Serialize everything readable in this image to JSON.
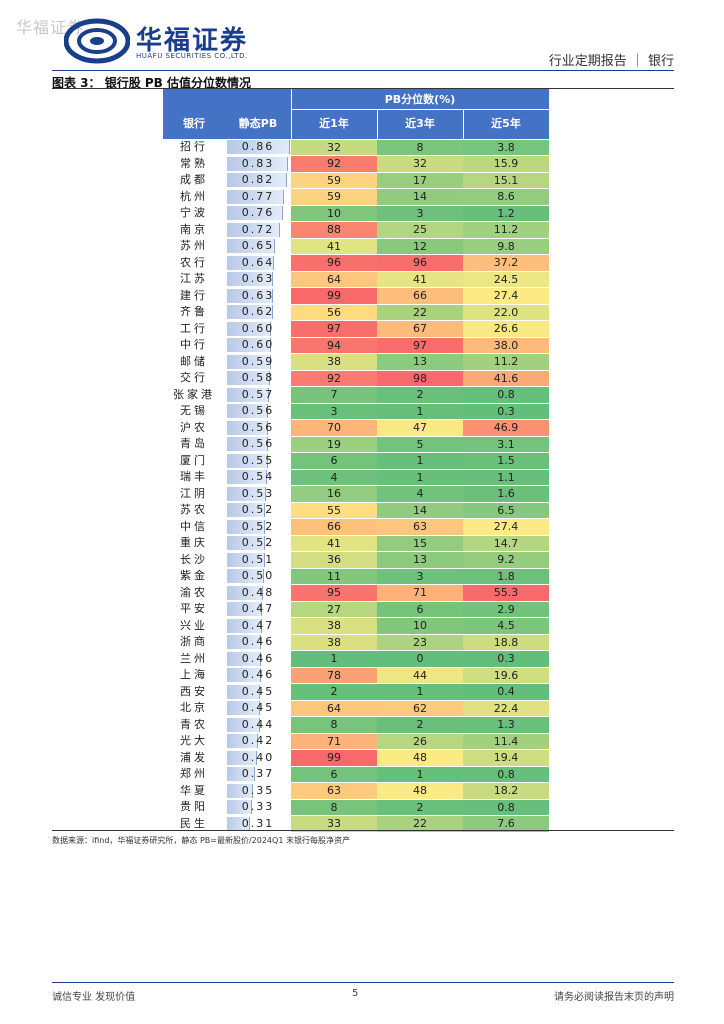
{
  "watermark": "华福证券",
  "logo": {
    "cn": "华福证券",
    "en": "HUAFU SECURITIES CO.,LTD."
  },
  "header": {
    "right": "行业定期报告 ｜ 银行"
  },
  "figure": {
    "title": "图表 3：  银行股 PB 估值分位数情况"
  },
  "table": {
    "group_header": "PB分位数(%)",
    "columns": [
      "银行",
      "静态PB",
      "近1年",
      "近3年",
      "近5年"
    ],
    "pb_max": 0.86,
    "rows": [
      {
        "bank": "招行",
        "pb": "0.86",
        "y1": "32",
        "y3": "8",
        "y5": "3.8"
      },
      {
        "bank": "常熟",
        "pb": "0.83",
        "y1": "92",
        "y3": "32",
        "y5": "15.9"
      },
      {
        "bank": "成都",
        "pb": "0.82",
        "y1": "59",
        "y3": "17",
        "y5": "15.1"
      },
      {
        "bank": "杭州",
        "pb": "0.77",
        "y1": "59",
        "y3": "14",
        "y5": "8.6"
      },
      {
        "bank": "宁波",
        "pb": "0.76",
        "y1": "10",
        "y3": "3",
        "y5": "1.2"
      },
      {
        "bank": "南京",
        "pb": "0.72",
        "y1": "88",
        "y3": "25",
        "y5": "11.2"
      },
      {
        "bank": "苏州",
        "pb": "0.65",
        "y1": "41",
        "y3": "12",
        "y5": "9.8"
      },
      {
        "bank": "农行",
        "pb": "0.64",
        "y1": "96",
        "y3": "96",
        "y5": "37.2"
      },
      {
        "bank": "江苏",
        "pb": "0.63",
        "y1": "64",
        "y3": "41",
        "y5": "24.5"
      },
      {
        "bank": "建行",
        "pb": "0.63",
        "y1": "99",
        "y3": "66",
        "y5": "27.4"
      },
      {
        "bank": "齐鲁",
        "pb": "0.62",
        "y1": "56",
        "y3": "22",
        "y5": "22.0"
      },
      {
        "bank": "工行",
        "pb": "0.60",
        "y1": "97",
        "y3": "67",
        "y5": "26.6"
      },
      {
        "bank": "中行",
        "pb": "0.60",
        "y1": "94",
        "y3": "97",
        "y5": "38.0"
      },
      {
        "bank": "邮储",
        "pb": "0.59",
        "y1": "38",
        "y3": "13",
        "y5": "11.2"
      },
      {
        "bank": "交行",
        "pb": "0.58",
        "y1": "92",
        "y3": "98",
        "y5": "41.6"
      },
      {
        "bank": "张家港",
        "pb": "0.57",
        "y1": "7",
        "y3": "2",
        "y5": "0.8"
      },
      {
        "bank": "无锡",
        "pb": "0.56",
        "y1": "3",
        "y3": "1",
        "y5": "0.3"
      },
      {
        "bank": "沪农",
        "pb": "0.56",
        "y1": "70",
        "y3": "47",
        "y5": "46.9"
      },
      {
        "bank": "青岛",
        "pb": "0.56",
        "y1": "19",
        "y3": "5",
        "y5": "3.1"
      },
      {
        "bank": "厦门",
        "pb": "0.55",
        "y1": "6",
        "y3": "1",
        "y5": "1.5"
      },
      {
        "bank": "瑞丰",
        "pb": "0.54",
        "y1": "4",
        "y3": "1",
        "y5": "1.1"
      },
      {
        "bank": "江阴",
        "pb": "0.53",
        "y1": "16",
        "y3": "4",
        "y5": "1.6"
      },
      {
        "bank": "苏农",
        "pb": "0.52",
        "y1": "55",
        "y3": "14",
        "y5": "6.5"
      },
      {
        "bank": "中信",
        "pb": "0.52",
        "y1": "66",
        "y3": "63",
        "y5": "27.4"
      },
      {
        "bank": "重庆",
        "pb": "0.52",
        "y1": "41",
        "y3": "15",
        "y5": "14.7"
      },
      {
        "bank": "长沙",
        "pb": "0.51",
        "y1": "36",
        "y3": "13",
        "y5": "9.2"
      },
      {
        "bank": "紫金",
        "pb": "0.50",
        "y1": "11",
        "y3": "3",
        "y5": "1.8"
      },
      {
        "bank": "渝农",
        "pb": "0.48",
        "y1": "95",
        "y3": "71",
        "y5": "55.3"
      },
      {
        "bank": "平安",
        "pb": "0.47",
        "y1": "27",
        "y3": "6",
        "y5": "2.9"
      },
      {
        "bank": "兴业",
        "pb": "0.47",
        "y1": "38",
        "y3": "10",
        "y5": "4.5"
      },
      {
        "bank": "浙商",
        "pb": "0.46",
        "y1": "38",
        "y3": "23",
        "y5": "18.8"
      },
      {
        "bank": "兰州",
        "pb": "0.46",
        "y1": "1",
        "y3": "0",
        "y5": "0.3"
      },
      {
        "bank": "上海",
        "pb": "0.46",
        "y1": "78",
        "y3": "44",
        "y5": "19.6"
      },
      {
        "bank": "西安",
        "pb": "0.45",
        "y1": "2",
        "y3": "1",
        "y5": "0.4"
      },
      {
        "bank": "北京",
        "pb": "0.45",
        "y1": "64",
        "y3": "62",
        "y5": "22.4"
      },
      {
        "bank": "青农",
        "pb": "0.44",
        "y1": "8",
        "y3": "2",
        "y5": "1.3"
      },
      {
        "bank": "光大",
        "pb": "0.42",
        "y1": "71",
        "y3": "26",
        "y5": "11.4"
      },
      {
        "bank": "浦发",
        "pb": "0.40",
        "y1": "99",
        "y3": "48",
        "y5": "19.4"
      },
      {
        "bank": "郑州",
        "pb": "0.37",
        "y1": "6",
        "y3": "1",
        "y5": "0.8"
      },
      {
        "bank": "华夏",
        "pb": "0.35",
        "y1": "63",
        "y3": "48",
        "y5": "18.2"
      },
      {
        "bank": "贵阳",
        "pb": "0.33",
        "y1": "8",
        "y3": "2",
        "y5": "0.8"
      },
      {
        "bank": "民生",
        "pb": "0.31",
        "y1": "33",
        "y3": "22",
        "y5": "7.6"
      }
    ]
  },
  "source": "数据来源：ifind，华福证券研究所，静态 PB=最新股价/2024Q1 末银行每股净资产",
  "footer": {
    "left": "诚信专业  发现价值",
    "page": "5",
    "right": "请务必阅读报告末页的声明"
  },
  "colors": {
    "low": "#63be7b",
    "mid": "#ffeb84",
    "high": "#f8696b",
    "header": "#4472c4"
  }
}
